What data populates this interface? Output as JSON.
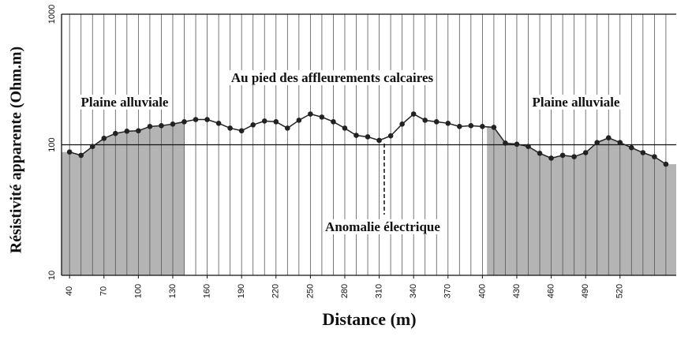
{
  "chart_data": {
    "type": "line",
    "xlabel": "Distance (m)",
    "ylabel": "Résistivité apparente (Ohm.m)",
    "x": [
      40,
      50,
      60,
      70,
      80,
      90,
      100,
      110,
      120,
      130,
      140,
      150,
      160,
      170,
      180,
      190,
      200,
      210,
      220,
      230,
      240,
      250,
      260,
      270,
      280,
      290,
      300,
      310,
      320,
      330,
      340,
      350,
      360,
      370,
      380,
      390,
      400,
      410,
      420,
      430,
      440,
      450,
      460,
      470,
      480,
      490,
      500,
      510,
      520,
      530,
      540,
      550,
      560
    ],
    "series": [
      {
        "color": "#222222",
        "values": [
          88,
          83,
          97,
          112,
          122,
          127,
          128,
          138,
          140,
          144,
          150,
          156,
          156,
          146,
          134,
          128,
          142,
          152,
          150,
          134,
          154,
          172,
          163,
          150,
          134,
          118,
          115,
          108,
          117,
          144,
          172,
          154,
          150,
          146,
          138,
          140,
          138,
          136,
          103,
          101,
          97,
          86,
          79,
          83,
          81,
          87,
          104,
          113,
          104,
          95,
          87,
          81,
          71
        ]
      }
    ],
    "xlim": [
      33,
      569
    ],
    "xticks": [
      40,
      70,
      100,
      130,
      160,
      190,
      220,
      250,
      280,
      310,
      340,
      370,
      400,
      430,
      460,
      490,
      520
    ],
    "ylim": [
      10,
      1000
    ],
    "yticks": [
      10,
      100,
      1000
    ],
    "log_y": true,
    "shaded_ranges": [
      [
        33,
        140
      ],
      [
        404,
        569
      ]
    ],
    "shade_color": "#b4b4b4",
    "annotations": [
      "Plaine alluviale",
      "Au pied des affleurements calcaires",
      "Plaine alluviale",
      "Anomalie électrique"
    ]
  }
}
